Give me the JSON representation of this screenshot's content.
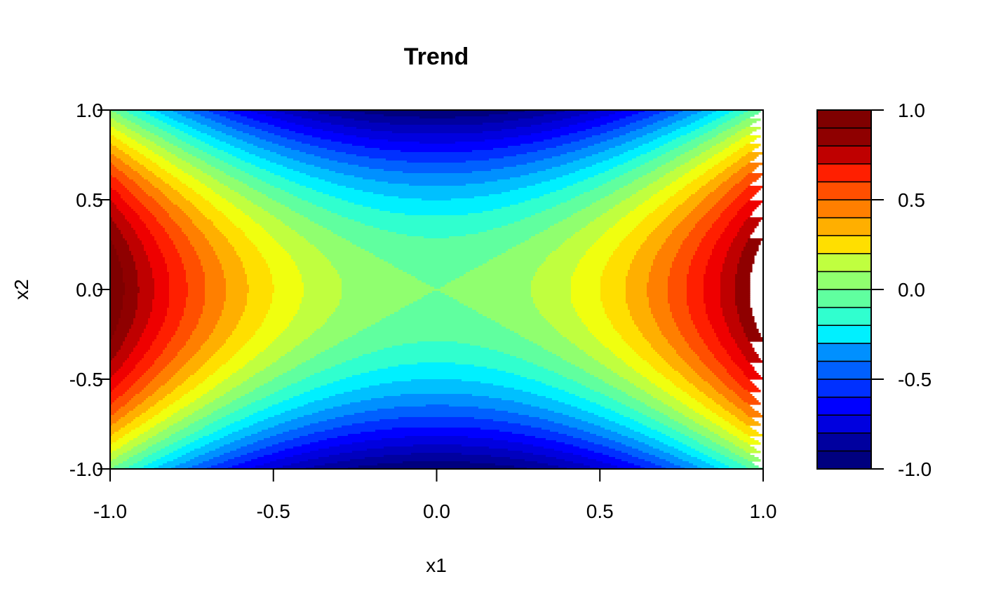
{
  "chart_data": {
    "type": "heatmap",
    "subtype": "filled-contour",
    "title": "Trend",
    "xlabel": "x1",
    "ylabel": "x2",
    "xlim": [
      -1.0,
      1.0
    ],
    "ylim": [
      -1.0,
      1.0
    ],
    "zlim": [
      -1.0,
      1.0
    ],
    "function": "x1^2 - x2^2",
    "x_ticks": [
      "-1.0",
      "-0.5",
      "0.0",
      "0.5",
      "1.0"
    ],
    "y_ticks": [
      "-1.0",
      "-0.5",
      "0.0",
      "0.5",
      "1.0"
    ],
    "legend_ticks": [
      "-1.0",
      "-0.5",
      "0.0",
      "0.5",
      "1.0"
    ],
    "levels": [
      -1.0,
      -0.9,
      -0.8,
      -0.7,
      -0.6,
      -0.5,
      -0.4,
      -0.3,
      -0.2,
      -0.1,
      0.0,
      0.1,
      0.2,
      0.3,
      0.4,
      0.5,
      0.6,
      0.7,
      0.8,
      0.9,
      1.0
    ],
    "colors": [
      "#00007F",
      "#00009F",
      "#0000BF",
      "#0000DF",
      "#0000FF",
      "#0030FF",
      "#0060FF",
      "#0090FF",
      "#00C0FF",
      "#00F0FF",
      "#30FFCF",
      "#60FF9F",
      "#90FF6F",
      "#C0FF3F",
      "#F0FF0F",
      "#FFDF00",
      "#FFAF00",
      "#FF7F00",
      "#FF4F00",
      "#FF1F00",
      "#EF0000",
      "#BF0000",
      "#8F0000",
      "#7F0000"
    ],
    "legend_position": "right"
  }
}
